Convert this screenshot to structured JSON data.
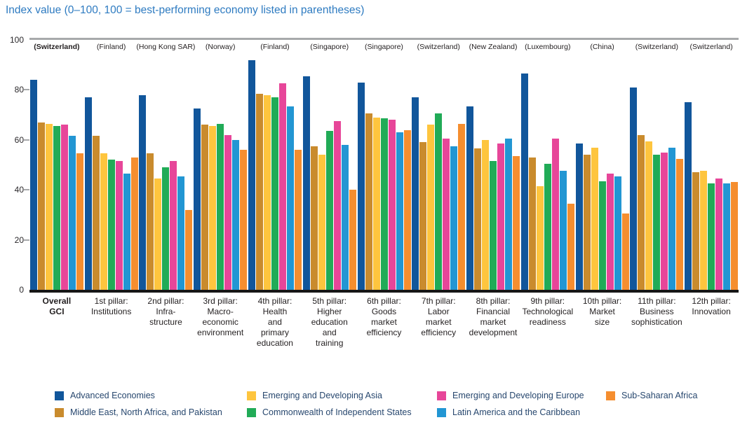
{
  "chart_data": {
    "type": "bar",
    "title": "Index value (0–100, 100 = best-performing economy listed in parentheses)",
    "ylabel": "Index value",
    "ylim": [
      0,
      100
    ],
    "yticks": [
      0,
      20,
      40,
      60,
      80,
      100
    ],
    "grid": false,
    "legend_position": "bottom",
    "categories": [
      {
        "label_lines": [
          "Overall",
          "GCI"
        ],
        "best": "(Switzerland)",
        "bold": true
      },
      {
        "label_lines": [
          "1st pillar:",
          "Institutions"
        ],
        "best": "(Finland)",
        "bold": false
      },
      {
        "label_lines": [
          "2nd pillar:",
          "Infra-",
          "structure"
        ],
        "best": "(Hong Kong SAR)",
        "bold": false
      },
      {
        "label_lines": [
          "3rd pillar:",
          "Macro-",
          "economic",
          "environment"
        ],
        "best": "(Norway)",
        "bold": false
      },
      {
        "label_lines": [
          "4th pillar:",
          "Health",
          "and",
          "primary",
          "education"
        ],
        "best": "(Finland)",
        "bold": false
      },
      {
        "label_lines": [
          "5th pillar:",
          "Higher",
          "education",
          "and",
          "training"
        ],
        "best": "(Singapore)",
        "bold": false
      },
      {
        "label_lines": [
          "6th pillar:",
          "Goods",
          "market",
          "efficiency"
        ],
        "best": "(Singapore)",
        "bold": false
      },
      {
        "label_lines": [
          "7th pillar:",
          "Labor",
          "market",
          "efficiency"
        ],
        "best": "(Switzerland)",
        "bold": false
      },
      {
        "label_lines": [
          "8th pillar:",
          "Financial",
          "market",
          "development"
        ],
        "best": "(New Zealand)",
        "bold": false
      },
      {
        "label_lines": [
          "9th pillar:",
          "Technological",
          "readiness"
        ],
        "best": "(Luxembourg)",
        "bold": false
      },
      {
        "label_lines": [
          "10th pillar:",
          "Market",
          "size"
        ],
        "best": "(China)",
        "bold": false
      },
      {
        "label_lines": [
          "11th pillar:",
          "Business",
          "sophistication"
        ],
        "best": "(Switzerland)",
        "bold": false
      },
      {
        "label_lines": [
          "12th pillar:",
          "Innovation"
        ],
        "best": "(Switzerland)",
        "bold": false
      }
    ],
    "series": [
      {
        "key": "advanced-economies",
        "name": "Advanced Economies",
        "color": "#11569B",
        "values": [
          84,
          77,
          78,
          72.5,
          92,
          85.5,
          83,
          77,
          73.5,
          86.5,
          58.5,
          81,
          75
        ]
      },
      {
        "key": "middle-east-north-africa-pakistan",
        "name": "Middle East, North Africa, and Pakistan",
        "color": "#C98B2D",
        "values": [
          67,
          61.5,
          54.5,
          66,
          78.5,
          57.5,
          70.5,
          59,
          56.5,
          53,
          54,
          62,
          47
        ]
      },
      {
        "key": "emerging-developing-asia",
        "name": "Emerging and Developing Asia",
        "color": "#FEC53E",
        "values": [
          66.5,
          54.5,
          44.5,
          65.5,
          78,
          54,
          69,
          66,
          60,
          41.5,
          57,
          59.5,
          47.5
        ]
      },
      {
        "key": "commonwealth-independent-states",
        "name": "Commonwealth of Independent States",
        "color": "#21AB57",
        "values": [
          65.5,
          52,
          49,
          66.5,
          77,
          63.5,
          68.5,
          70.5,
          51.5,
          50.5,
          43.5,
          54,
          42.5
        ]
      },
      {
        "key": "emerging-developing-europe",
        "name": "Emerging and Developing Europe",
        "color": "#E74699",
        "values": [
          66,
          51.5,
          51.5,
          62,
          82.5,
          67.5,
          68,
          60.5,
          58.5,
          60.5,
          46.5,
          55,
          44.5
        ]
      },
      {
        "key": "latin-america-caribbean",
        "name": "Latin America and the Caribbean",
        "color": "#2296D3",
        "values": [
          61.5,
          46.5,
          45.5,
          60,
          73.5,
          58,
          63,
          57.5,
          60.5,
          47.5,
          45.5,
          57,
          42.5
        ]
      },
      {
        "key": "sub-saharan-africa",
        "name": "Sub-Saharan Africa",
        "color": "#F58E2F",
        "values": [
          54.5,
          53,
          32,
          56,
          56,
          40,
          64,
          66.5,
          53.5,
          34.5,
          30.5,
          52.5,
          43
        ]
      }
    ]
  },
  "colors": {
    "title_text": "#2E7BC1",
    "axis_text": "#231F20",
    "legend_text": "#27476E",
    "top_rule": "#A7A9AB",
    "baseline": "#161616"
  }
}
